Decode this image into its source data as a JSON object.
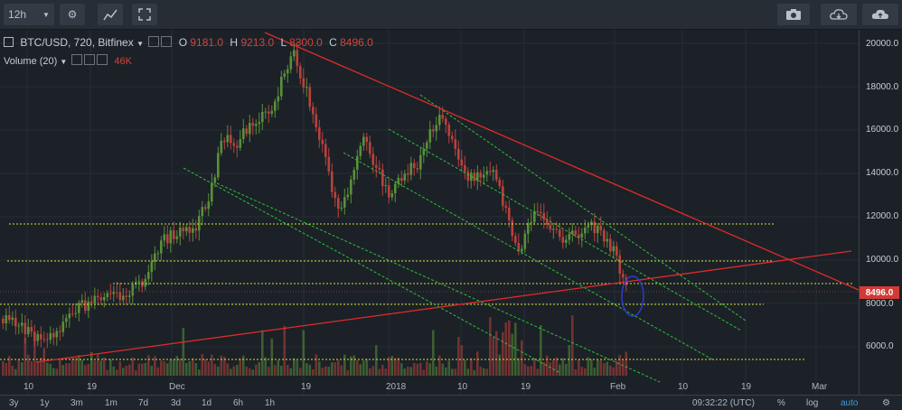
{
  "toolbar": {
    "interval": "12h",
    "icons": [
      "settings-icon",
      "indicators-icon",
      "fullscreen-icon",
      "camera-icon",
      "cloud-download-icon",
      "cloud-upload-icon"
    ]
  },
  "legend": {
    "symbol": "BTC/USD, 720, Bitfinex",
    "o_label": "O",
    "o_value": "9181.0",
    "h_label": "H",
    "h_value": "9213.0",
    "l_label": "L",
    "l_value": "8300.0",
    "c_label": "C",
    "c_value": "8496.0",
    "volume_label": "Volume (20)",
    "volume_value": "46K"
  },
  "price_axis": {
    "ticks": [
      "20000.0",
      "18000.0",
      "16000.0",
      "14000.0",
      "12000.0",
      "10000.0",
      "8000.0",
      "6000.0"
    ],
    "current": "8496.0"
  },
  "time_axis": {
    "ticks": [
      "10",
      "19",
      "Dec",
      "19",
      "2018",
      "10",
      "19",
      "Feb",
      "10",
      "19",
      "Mar"
    ]
  },
  "bottom": {
    "ranges": [
      "3y",
      "1y",
      "3m",
      "1m",
      "7d",
      "3d",
      "1d",
      "6h",
      "1h"
    ],
    "clock": "09:32:22 (UTC)",
    "percent": "%",
    "log": "log",
    "auto": "auto"
  },
  "colors": {
    "up": "#5a8f3a",
    "down": "#b9423c",
    "resistance": "#e02a2a",
    "channel": "#2fbf3a",
    "level": "#d6e03a"
  }
}
